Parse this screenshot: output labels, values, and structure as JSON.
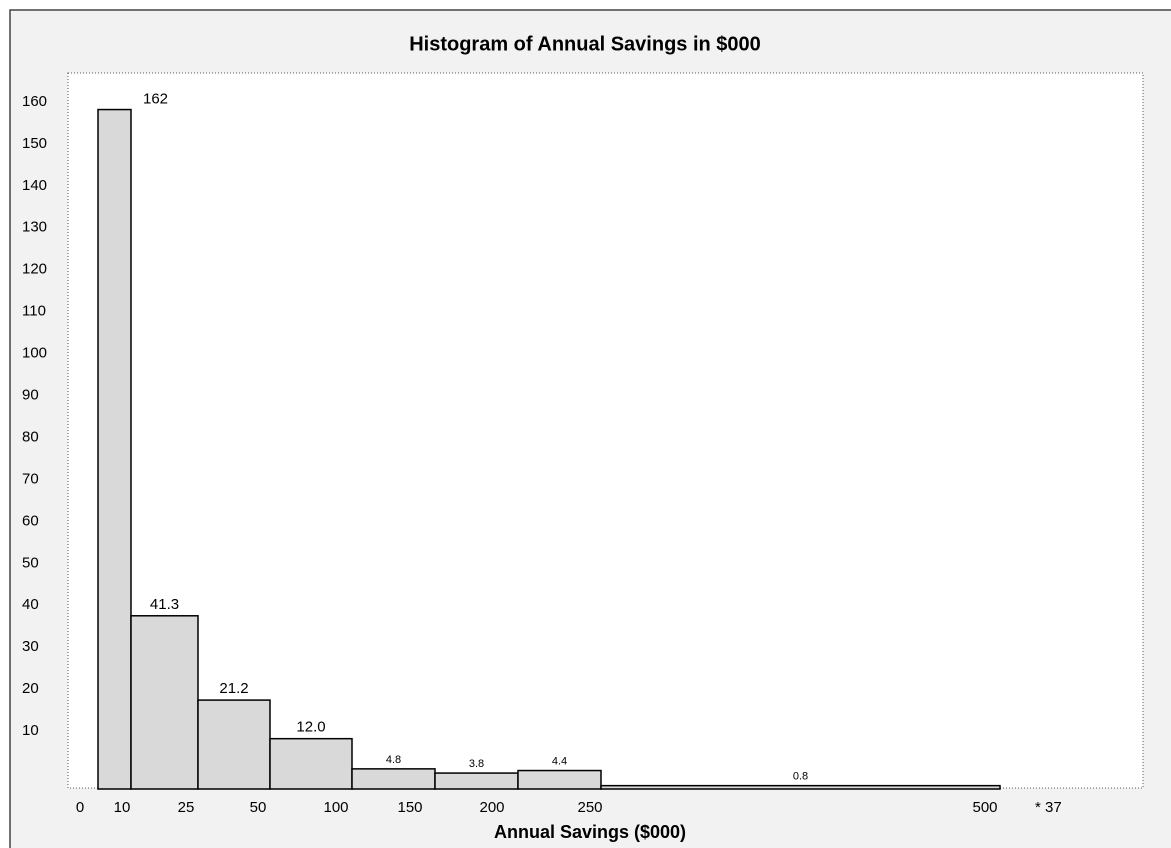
{
  "chart_data": {
    "type": "histogram",
    "title": "Histogram of Annual Savings in $000",
    "x_label": "Annual Savings ($000)",
    "bins": [
      0,
      10,
      25,
      50,
      100,
      150,
      200,
      250,
      500
    ],
    "values": [
      162,
      41.3,
      21.2,
      12.0,
      4.8,
      3.8,
      4.4,
      0.8
    ],
    "value_labels": [
      "162",
      "41.3",
      "21.2",
      "12.0",
      "4.8",
      "3.8",
      "4.4",
      "0.8"
    ],
    "annotation": "* 37",
    "color": "#d9d9d9",
    "ylim": [
      0,
      170
    ],
    "yticks": [
      10,
      20,
      30,
      40,
      50,
      60,
      70,
      80,
      90,
      100,
      110,
      120,
      130,
      140,
      150,
      160
    ],
    "grid": false
  }
}
